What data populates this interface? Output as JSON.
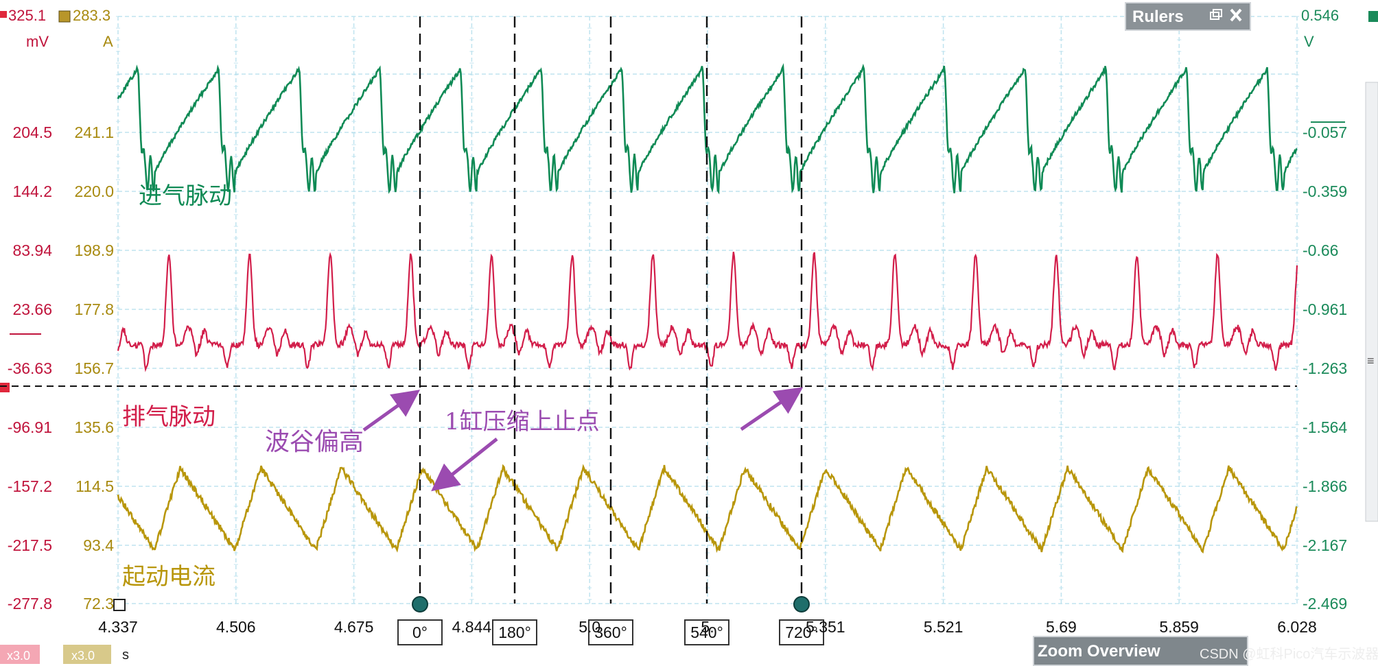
{
  "chart_data": {
    "type": "line",
    "x_axis": {
      "unit": "s",
      "tick_labels": [
        "4.337",
        "4.506",
        "4.675",
        "4.844",
        "5.0",
        "5.",
        "5.351",
        "5.521",
        "5.69",
        "5.859",
        "6.028"
      ],
      "range": [
        4.337,
        6.028
      ]
    },
    "axes": [
      {
        "side": "left",
        "unit": "mV",
        "color": "#c0143c",
        "top_label": "325.1",
        "tick_labels": [
          "204.5",
          "144.2",
          "83.94",
          "23.66",
          "-36.63",
          "-96.91",
          "-157.2",
          "-217.5",
          "-277.8"
        ]
      },
      {
        "side": "left",
        "unit": "A",
        "color": "#a88a10",
        "top_label": "283.3",
        "tick_labels": [
          "241.1",
          "220.0",
          "198.9",
          "177.8",
          "156.7",
          "135.6",
          "114.5",
          "93.4",
          "72.3"
        ]
      },
      {
        "side": "right",
        "unit": "V",
        "color": "#1a8a5a",
        "top_label": "0.546",
        "tick_labels": [
          "-0.057",
          "-0.359",
          "-0.66",
          "-0.961",
          "-1.263",
          "-1.564",
          "-1.866",
          "-2.167",
          "-2.469"
        ]
      }
    ],
    "series": [
      {
        "name": "进气脉动",
        "color": "#0f8a55",
        "waveform": "intake_pulse"
      },
      {
        "name": "排气脉动",
        "color": "#d21e4a",
        "waveform": "exhaust_pulse"
      },
      {
        "name": "起动电流",
        "color": "#b8960a",
        "waveform": "starter_current"
      }
    ],
    "rulers": {
      "vertical_labels": [
        "0°",
        "180°",
        "360°",
        "540°",
        "720°"
      ],
      "vertical_times": [
        4.753,
        4.867,
        4.981,
        5.095,
        5.209
      ],
      "horizontal_level_mV": -36.63
    },
    "annotations": [
      "波谷偏高",
      "1缸压缩上止点"
    ],
    "scale_badges": [
      "x3.0",
      "x3.0"
    ]
  },
  "panels": {
    "rulers_title": "Rulers",
    "zoom_overview_title": "Zoom Overview"
  },
  "watermark": "CSDN @虹科Pico汽车示波器"
}
